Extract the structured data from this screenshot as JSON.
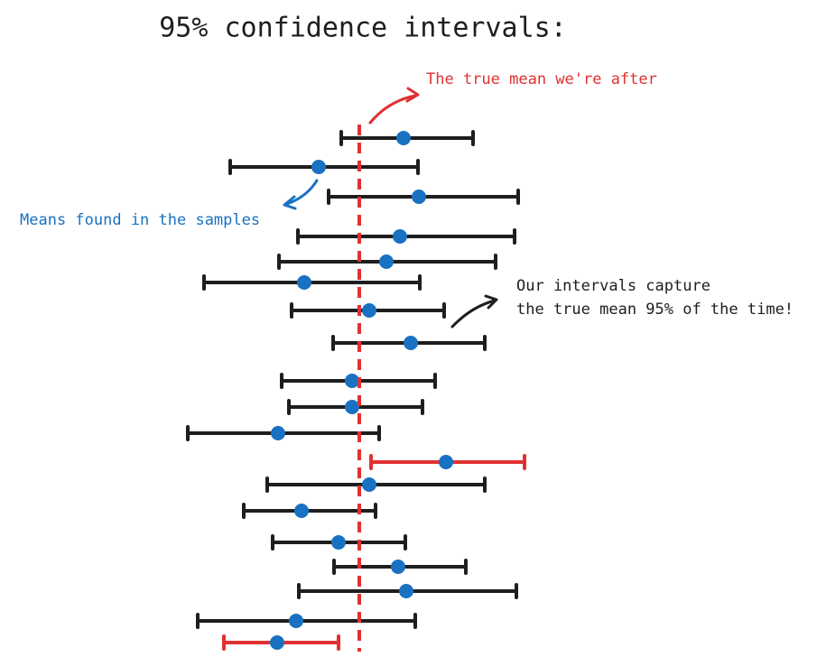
{
  "title": "95% confidence intervals:",
  "annotations": {
    "true_mean": "The true mean we're after",
    "sample_means": "Means found in the samples",
    "capture": [
      "Our intervals capture",
      "the true mean 95% of the time!"
    ]
  }
}
